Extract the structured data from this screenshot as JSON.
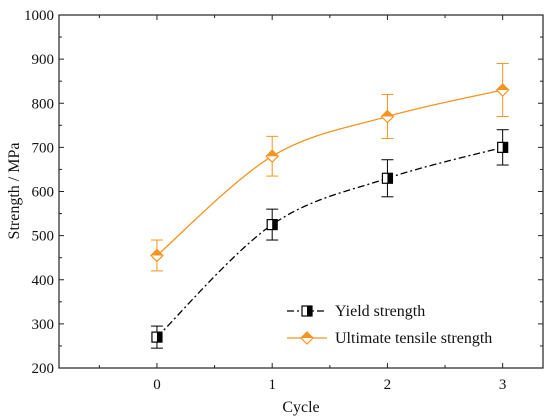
{
  "chart_data": {
    "type": "line",
    "title": "",
    "xlabel": "Cycle",
    "ylabel": "Strength / MPa",
    "x": [
      0,
      1,
      2,
      3
    ],
    "xticks": [
      "0",
      "1",
      "2",
      "3"
    ],
    "xlim": [
      -0.85,
      3.35
    ],
    "ylim": [
      200,
      1000
    ],
    "yticks": [
      "200",
      "300",
      "400",
      "500",
      "600",
      "700",
      "800",
      "900",
      "1000"
    ],
    "grid": false,
    "legend_position": "bottom-right",
    "series": [
      {
        "name": "Yield strength",
        "values": [
          270,
          525,
          630,
          700
        ],
        "errors": [
          25,
          35,
          42,
          40
        ],
        "color": "#000000",
        "line_style": "dash-dot",
        "marker": "half-filled-square"
      },
      {
        "name": "Ultimate tensile strength",
        "values": [
          455,
          680,
          770,
          830
        ],
        "errors": [
          35,
          45,
          50,
          60
        ],
        "color": "#F7931E",
        "line_style": "solid",
        "marker": "half-filled-diamond"
      }
    ]
  }
}
